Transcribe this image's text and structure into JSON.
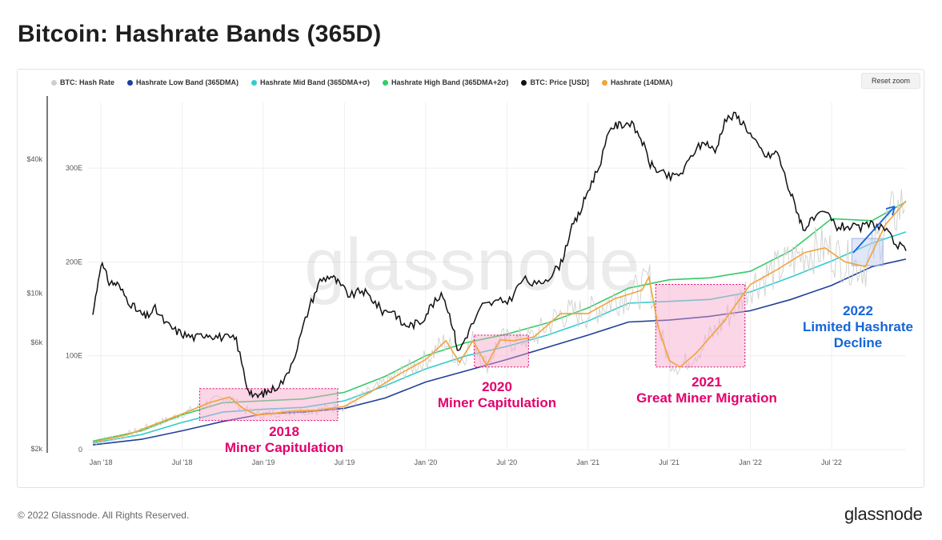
{
  "page": {
    "title": "Bitcoin: Hashrate Bands (365D)",
    "footer_copyright": "© 2022 Glassnode. All Rights Reserved.",
    "footer_logo": "glassnode",
    "watermark": "glassnode",
    "reset_zoom_label": "Reset zoom"
  },
  "legend": [
    {
      "label": "BTC: Hash Rate",
      "color": "#cfcfcf"
    },
    {
      "label": "Hashrate Low Band (365DMA)",
      "color": "#1f3f99"
    },
    {
      "label": "Hashrate Mid Band (365DMA+σ)",
      "color": "#33cccc"
    },
    {
      "label": "Hashrate High Band (365DMA+2σ)",
      "color": "#33cc66"
    },
    {
      "label": "BTC: Price [USD]",
      "color": "#111111"
    },
    {
      "label": "Hashrate (14DMA)",
      "color": "#f2a33a"
    }
  ],
  "chart_data": {
    "type": "line",
    "title": "Bitcoin: Hashrate Bands (365D)",
    "x_ticks": [
      "Jan '18",
      "Jul '18",
      "Jan '19",
      "Jul '19",
      "Jan '20",
      "Jul '20",
      "Jan '21",
      "Jul '21",
      "Jan '22",
      "Jul '22"
    ],
    "x_tick_months": [
      0,
      6,
      12,
      18,
      24,
      30,
      36,
      42,
      48,
      54
    ],
    "x_range_months": [
      -0.6,
      59.5
    ],
    "x_start": "2018-01",
    "price_axis": {
      "ticks": [
        "$40k",
        "$10k",
        "$6k",
        "$2k"
      ],
      "tick_values": [
        40000,
        10000,
        6000,
        2000
      ],
      "scale": "log"
    },
    "hashrate_axis": {
      "ticks": [
        "300E",
        "200E",
        "100E",
        "0"
      ],
      "tick_values": [
        300,
        200,
        100,
        0
      ],
      "range": [
        0,
        370
      ],
      "unit": "E"
    },
    "series": [
      {
        "name": "Hashrate Low Band (365DMA)",
        "axis": "hashrate",
        "color": "#1f3f99",
        "x": [
          -0.6,
          3,
          6,
          9,
          12,
          15,
          18,
          21,
          24,
          27,
          30,
          33,
          36,
          39,
          42,
          45,
          48,
          51,
          54,
          57,
          59.5
        ],
        "y": [
          5,
          11,
          20,
          30,
          38,
          40,
          44,
          55,
          72,
          84,
          96,
          109,
          122,
          136,
          138,
          142,
          148,
          160,
          175,
          195,
          203
        ]
      },
      {
        "name": "Hashrate Mid Band (365DMA+σ)",
        "axis": "hashrate",
        "color": "#33cccc",
        "x": [
          -0.6,
          3,
          6,
          9,
          12,
          15,
          18,
          21,
          24,
          27,
          30,
          33,
          36,
          39,
          42,
          45,
          48,
          51,
          54,
          57,
          59.5
        ],
        "y": [
          7,
          16,
          29,
          40,
          43,
          45,
          52,
          68,
          86,
          100,
          110,
          122,
          137,
          156,
          158,
          160,
          168,
          184,
          201,
          220,
          232
        ]
      },
      {
        "name": "Hashrate High Band (365DMA+2σ)",
        "axis": "hashrate",
        "color": "#33cc66",
        "x": [
          -0.6,
          3,
          6,
          9,
          12,
          15,
          18,
          21,
          24,
          27,
          30,
          33,
          36,
          39,
          42,
          45,
          48,
          51,
          54,
          57,
          59.5
        ],
        "y": [
          9,
          20,
          37,
          50,
          52,
          54,
          61,
          78,
          100,
          114,
          123,
          135,
          151,
          172,
          181,
          183,
          190,
          212,
          246,
          244,
          264
        ]
      },
      {
        "name": "Hashrate (14DMA)",
        "axis": "hashrate",
        "color": "#f2a33a",
        "x": [
          -0.6,
          2,
          4,
          6,
          8,
          9.5,
          10.5,
          11.5,
          12.5,
          14,
          16,
          18,
          20,
          22,
          24,
          25.5,
          26.5,
          27.5,
          28.5,
          29.5,
          30.5,
          32,
          34,
          36,
          38,
          40,
          40.5,
          41.2,
          42,
          42.8,
          44,
          46,
          48,
          50,
          52,
          53.5,
          55,
          56.5,
          58,
          59.5
        ],
        "y": [
          8,
          16,
          27,
          38,
          50,
          56,
          44,
          37,
          38,
          41,
          42,
          46,
          62,
          80,
          96,
          116,
          93,
          116,
          90,
          117,
          116,
          120,
          145,
          145,
          161,
          170,
          184,
          130,
          95,
          88,
          103,
          136,
          176,
          192,
          210,
          215,
          200,
          195,
          240,
          265
        ]
      },
      {
        "name": "BTC: Price [USD]",
        "axis": "price",
        "color": "#111111",
        "x": [
          -0.6,
          0,
          0.6,
          1.2,
          2,
          2.7,
          3.3,
          4,
          4.8,
          5.5,
          6.2,
          7,
          7.8,
          8.5,
          9.3,
          10,
          10.8,
          11.4,
          12,
          12.7,
          13.6,
          14.5,
          15.4,
          16.2,
          17,
          17.6,
          18.4,
          19.3,
          20,
          20.8,
          21.6,
          22.3,
          23,
          23.7,
          24.4,
          25.3,
          26,
          26.4,
          27.2,
          28.2,
          29.2,
          30.2,
          31.2,
          32.2,
          33.2,
          34,
          34.7,
          35.4,
          36,
          36.8,
          37.7,
          38.4,
          39.1,
          39.9,
          40.6,
          41.3,
          42.1,
          43,
          43.9,
          44.7,
          45.4,
          46.1,
          46.9,
          47.6,
          48.4,
          49.2,
          50,
          50.8,
          51.4,
          51.9,
          52.7,
          53.6,
          54.4,
          55.2,
          56,
          56.9,
          57.8,
          58.6,
          59.5
        ],
        "y": [
          8000,
          13800,
          11200,
          11000,
          9300,
          8300,
          7800,
          8500,
          7300,
          6800,
          6500,
          6300,
          6600,
          6400,
          6300,
          6200,
          3800,
          3400,
          3550,
          3700,
          4100,
          5700,
          8700,
          11400,
          12000,
          11000,
          9700,
          10300,
          9500,
          8300,
          8400,
          7200,
          7200,
          7500,
          8800,
          9800,
          7200,
          5400,
          6800,
          8800,
          9100,
          9300,
          11600,
          10800,
          12000,
          13600,
          19000,
          23000,
          29000,
          37000,
          56000,
          57000,
          58500,
          50000,
          38000,
          35000,
          33000,
          35000,
          44000,
          48000,
          43000,
          60000,
          63000,
          57000,
          47000,
          41000,
          43000,
          30000,
          24000,
          19500,
          21500,
          23000,
          19800,
          20000,
          19500,
          20500,
          19800,
          17000,
          15500
        ]
      }
    ],
    "annotations": [
      {
        "year": "2018",
        "text": "Miner Capitulation",
        "color": "#e3006c"
      },
      {
        "year": "2020",
        "text": "Miner Capitulation",
        "color": "#e3006c"
      },
      {
        "year": "2021",
        "text": "Great Miner Migration",
        "color": "#e3006c"
      },
      {
        "year": "2022",
        "lines": [
          "Limited Hashrate",
          "Decline"
        ],
        "color": "#1565d8"
      }
    ]
  }
}
